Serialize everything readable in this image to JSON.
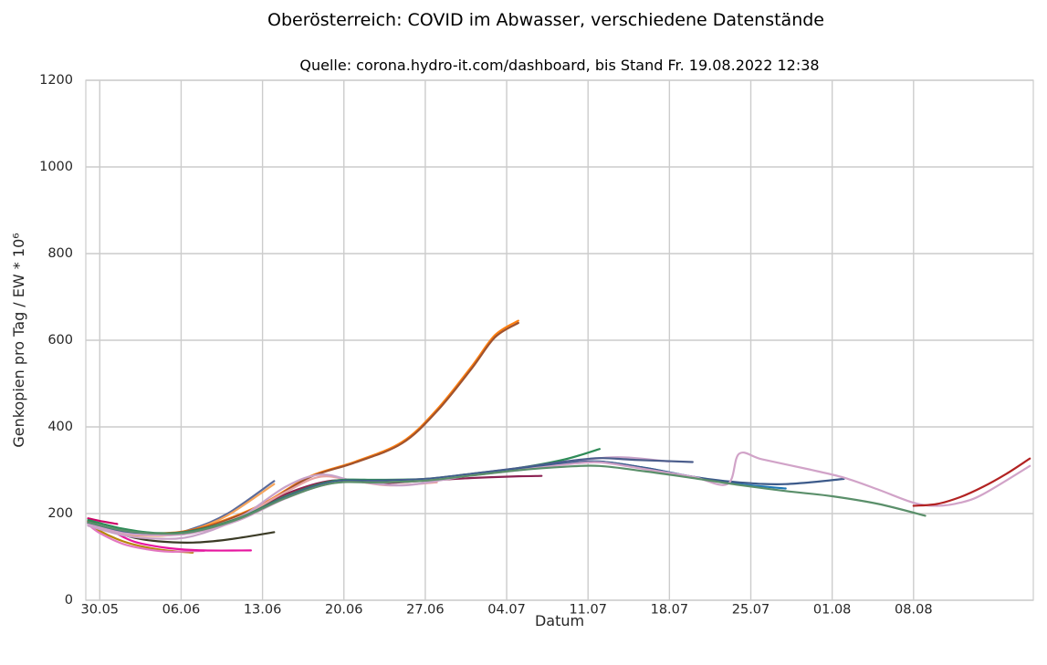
{
  "chart_data": {
    "type": "line",
    "title": "Oberösterreich: COVID im Abwasser, verschiedene Datenstände",
    "subtitle": "Quelle: corona.hydro-it.com/dashboard, bis Stand Fr. 19.08.2022 12:38",
    "xlabel": "Datum",
    "ylabel": "Genkopien pro Tag / EW * 10⁶",
    "ylim": [
      0,
      1200
    ],
    "xlim": [
      -1.2,
      80.3
    ],
    "grid": true,
    "x_ticks": [
      {
        "day": 0,
        "label": "30.05"
      },
      {
        "day": 7,
        "label": "06.06"
      },
      {
        "day": 14,
        "label": "13.06"
      },
      {
        "day": 21,
        "label": "20.06"
      },
      {
        "day": 28,
        "label": "27.06"
      },
      {
        "day": 35,
        "label": "04.07"
      },
      {
        "day": 42,
        "label": "11.07"
      },
      {
        "day": 49,
        "label": "18.07"
      },
      {
        "day": 56,
        "label": "25.07"
      },
      {
        "day": 63,
        "label": "01.08"
      },
      {
        "day": 70,
        "label": "08.08"
      }
    ],
    "y_ticks": [
      0,
      200,
      400,
      600,
      800,
      1000,
      1200
    ],
    "series": [
      {
        "color": "#b8860b",
        "x": [
          -1,
          0,
          2,
          4,
          6,
          8
        ],
        "y": [
          180,
          160,
          136,
          122,
          114,
          110
        ]
      },
      {
        "color": "#e377c2",
        "x": [
          -1,
          0,
          2,
          4,
          6,
          9
        ],
        "y": [
          175,
          155,
          130,
          118,
          112,
          114
        ]
      },
      {
        "color": "#e6169f",
        "x": [
          -1,
          1,
          3,
          6,
          9,
          13
        ],
        "y": [
          182,
          160,
          135,
          120,
          115,
          115
        ]
      },
      {
        "color": "#cc0066",
        "x": [
          -1,
          0,
          1.5
        ],
        "y": [
          189,
          183,
          176
        ]
      },
      {
        "color": "#3b3b26",
        "x": [
          -1,
          1,
          3,
          5,
          8,
          11,
          15
        ],
        "y": [
          182,
          160,
          144,
          136,
          133,
          140,
          157
        ]
      },
      {
        "color": "#5a6a9a",
        "x": [
          -1,
          1,
          3,
          6,
          8,
          11,
          15
        ],
        "y": [
          176,
          160,
          153,
          153,
          165,
          200,
          275
        ]
      },
      {
        "color": "#f5a45a",
        "x": [
          -1,
          1,
          3,
          6,
          8,
          11,
          15
        ],
        "y": [
          178,
          158,
          150,
          150,
          162,
          196,
          268
        ]
      },
      {
        "color": "#ff7f0e",
        "x": [
          -1,
          1,
          4,
          7,
          10,
          14,
          18,
          22,
          26,
          29,
          32,
          34,
          36
        ],
        "y": [
          182,
          163,
          155,
          158,
          178,
          222,
          285,
          320,
          365,
          440,
          540,
          612,
          645
        ]
      },
      {
        "color": "#a0522d",
        "x": [
          -1,
          1,
          4,
          7,
          10,
          14,
          18,
          22,
          26,
          29,
          32,
          34,
          36
        ],
        "y": [
          183,
          164,
          155,
          157,
          176,
          220,
          283,
          318,
          362,
          436,
          535,
          607,
          640
        ]
      },
      {
        "color": "#8b2252",
        "x": [
          -1,
          2,
          5,
          8,
          12,
          16,
          20,
          24,
          28,
          32,
          36,
          38
        ],
        "y": [
          178,
          160,
          152,
          160,
          190,
          245,
          276,
          270,
          276,
          282,
          286,
          287
        ]
      },
      {
        "color": "#e8a3a3",
        "x": [
          -1,
          2,
          5,
          8,
          12,
          16,
          19,
          22,
          25,
          29
        ],
        "y": [
          177,
          159,
          151,
          159,
          192,
          250,
          285,
          275,
          265,
          272
        ]
      },
      {
        "color": "#c8a2c8",
        "x": [
          -1,
          2,
          5,
          8,
          12,
          16,
          19,
          22,
          26,
          30,
          34,
          38,
          42,
          45,
          49
        ],
        "y": [
          172,
          150,
          142,
          148,
          190,
          262,
          290,
          275,
          265,
          280,
          298,
          310,
          325,
          330,
          320
        ]
      },
      {
        "color": "#2e8b57",
        "x": [
          -1,
          2,
          5,
          8,
          12,
          16,
          20,
          24,
          28,
          32,
          36,
          40,
          43
        ],
        "y": [
          185,
          165,
          155,
          160,
          190,
          240,
          275,
          278,
          280,
          292,
          305,
          325,
          349
        ]
      },
      {
        "color": "#4b5d8c",
        "x": [
          -1,
          2,
          5,
          8,
          12,
          16,
          20,
          24,
          28,
          32,
          36,
          40,
          43,
          46,
          51
        ],
        "y": [
          180,
          160,
          153,
          158,
          188,
          238,
          273,
          276,
          280,
          292,
          305,
          320,
          328,
          324,
          319
        ]
      },
      {
        "color": "#1f77b4",
        "x": [
          -1,
          2,
          5,
          8,
          12,
          16,
          20,
          24,
          28,
          32,
          36,
          40,
          43,
          47,
          51,
          55,
          59
        ],
        "y": [
          179,
          159,
          152,
          157,
          187,
          237,
          272,
          274,
          278,
          290,
          302,
          315,
          320,
          305,
          285,
          268,
          258
        ]
      },
      {
        "color": "#3c5a8a",
        "x": [
          -1,
          2,
          5,
          8,
          12,
          16,
          20,
          24,
          28,
          32,
          36,
          40,
          43,
          47,
          51,
          55,
          59,
          64
        ],
        "y": [
          179,
          159,
          152,
          157,
          187,
          237,
          272,
          274,
          278,
          290,
          302,
          315,
          320,
          305,
          285,
          272,
          268,
          280
        ]
      },
      {
        "color": "#d1a3c8",
        "x": [
          -1,
          2,
          5,
          8,
          12,
          16,
          20,
          24,
          28,
          32,
          36,
          40,
          43,
          47,
          51,
          54,
          55,
          57,
          61,
          64,
          67,
          70,
          72,
          74,
          76,
          80
        ],
        "y": [
          175,
          155,
          150,
          155,
          185,
          235,
          270,
          272,
          276,
          288,
          300,
          313,
          318,
          302,
          285,
          268,
          338,
          325,
          302,
          283,
          255,
          225,
          218,
          225,
          245,
          310
        ]
      },
      {
        "color": "#b22222",
        "x": [
          70,
          72,
          74,
          76,
          78,
          80
        ],
        "y": [
          218,
          222,
          238,
          262,
          292,
          327
        ]
      },
      {
        "color": "#5a8f6a",
        "x": [
          -1,
          2,
          5,
          8,
          12,
          16,
          20,
          24,
          28,
          32,
          36,
          40,
          43,
          47,
          51,
          55,
          59,
          63,
          67,
          71
        ],
        "y": [
          180,
          161,
          154,
          158,
          188,
          236,
          270,
          272,
          276,
          288,
          300,
          308,
          310,
          297,
          282,
          266,
          252,
          240,
          222,
          195
        ]
      }
    ]
  }
}
